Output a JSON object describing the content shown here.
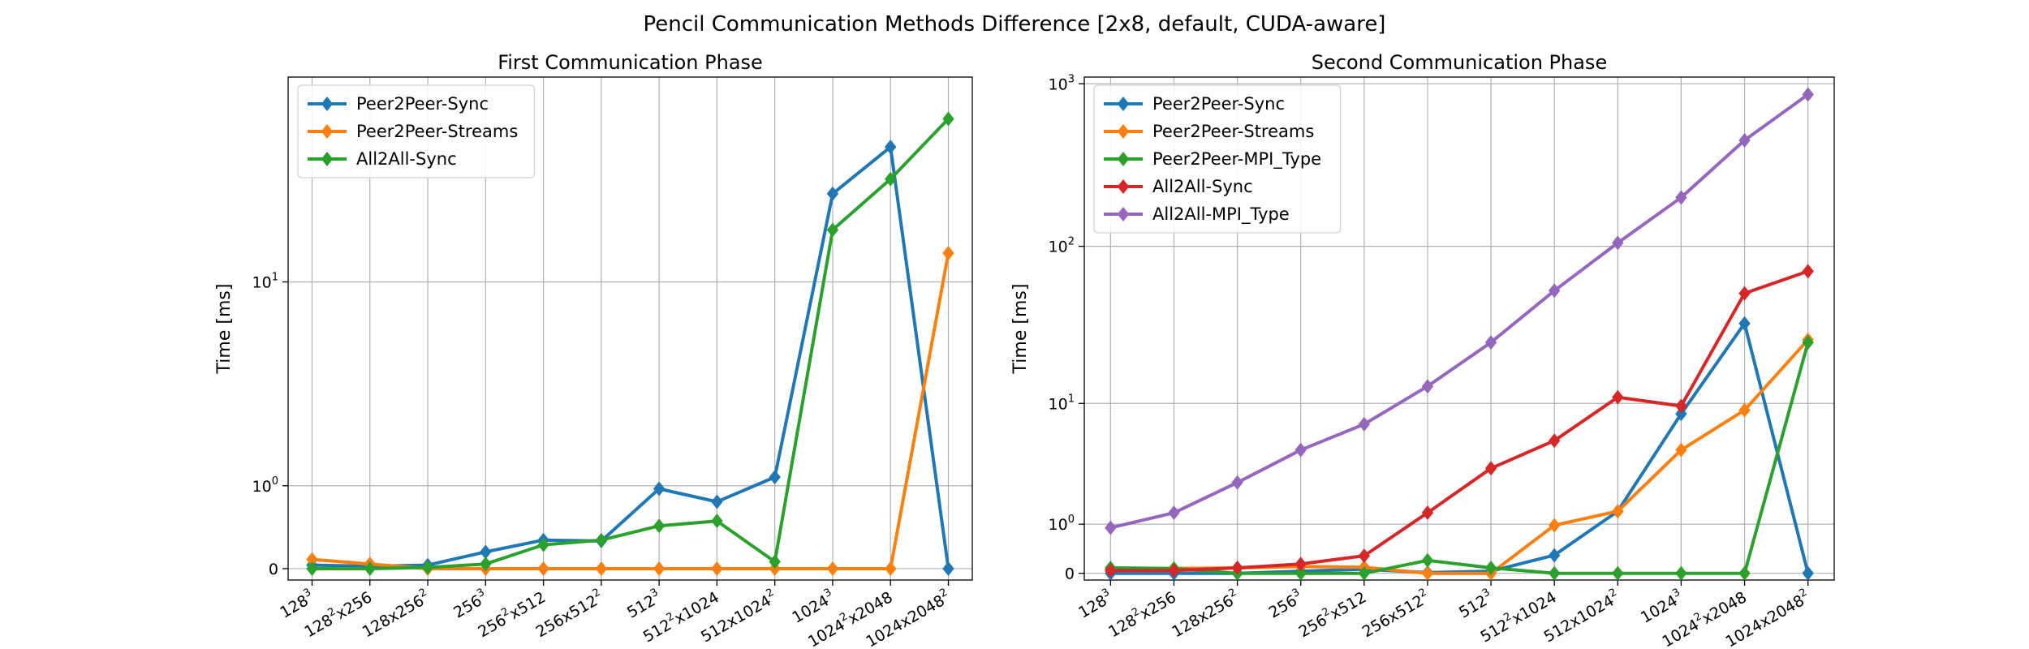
{
  "figure_title": "Pencil Communication Methods Difference [2x8, default, CUDA-aware]",
  "chart_data": [
    {
      "type": "line",
      "title": "First Communication Phase",
      "xlabel": "",
      "ylabel": "Time [ms]",
      "yscale": "symlog",
      "linthresh": 1,
      "ylim": [
        -0.1,
        60
      ],
      "yticks": [
        0,
        1,
        10
      ],
      "ytick_labels": [
        {
          "base": "0",
          "exp": ""
        },
        {
          "base": "10",
          "exp": "0"
        },
        {
          "base": "10",
          "exp": "1"
        }
      ],
      "grid": true,
      "legend_position": "upper-left",
      "categories": [
        {
          "b": "128",
          "s": "3",
          "t": ""
        },
        {
          "b": "128",
          "s": "2",
          "t": "x256"
        },
        {
          "b": "128x256",
          "s": "2",
          "t": ""
        },
        {
          "b": "256",
          "s": "3",
          "t": ""
        },
        {
          "b": "256",
          "s": "2",
          "t": "x512"
        },
        {
          "b": "256x512",
          "s": "2",
          "t": ""
        },
        {
          "b": "512",
          "s": "3",
          "t": ""
        },
        {
          "b": "512",
          "s": "2",
          "t": "x1024"
        },
        {
          "b": "512x1024",
          "s": "2",
          "t": ""
        },
        {
          "b": "1024",
          "s": "3",
          "t": ""
        },
        {
          "b": "1024",
          "s": "2",
          "t": "x2048"
        },
        {
          "b": "1024x2048",
          "s": "2",
          "t": ""
        }
      ],
      "series": [
        {
          "name": "Peer2Peer-Sync",
          "color": "#1f77b4",
          "values": [
            0.03,
            0.02,
            0.03,
            0.15,
            0.27,
            0.26,
            0.95,
            0.75,
            1.15,
            22,
            33,
            0
          ]
        },
        {
          "name": "Peer2Peer-Streams",
          "color": "#ff7f0e",
          "values": [
            0.08,
            0.04,
            0,
            0,
            0,
            0,
            0,
            0,
            0,
            0,
            0,
            13
          ]
        },
        {
          "name": "All2All-Sync",
          "color": "#2ca02c",
          "values": [
            0,
            0,
            0.01,
            0.04,
            0.22,
            0.27,
            0.43,
            0.49,
            0.06,
            16,
            25,
            42
          ]
        }
      ]
    },
    {
      "type": "line",
      "title": "Second Communication Phase",
      "xlabel": "",
      "ylabel": "Time [ms]",
      "yscale": "symlog",
      "linthresh": 1,
      "ylim": [
        -0.1,
        1100
      ],
      "yticks": [
        0,
        1,
        10,
        100,
        1000
      ],
      "ytick_labels": [
        {
          "base": "0",
          "exp": ""
        },
        {
          "base": "10",
          "exp": "0"
        },
        {
          "base": "10",
          "exp": "1"
        },
        {
          "base": "10",
          "exp": "2"
        },
        {
          "base": "10",
          "exp": "3"
        }
      ],
      "grid": true,
      "legend_position": "upper-left",
      "categories": [
        {
          "b": "128",
          "s": "3",
          "t": ""
        },
        {
          "b": "128",
          "s": "2",
          "t": "x256"
        },
        {
          "b": "128x256",
          "s": "2",
          "t": ""
        },
        {
          "b": "256",
          "s": "3",
          "t": ""
        },
        {
          "b": "256",
          "s": "2",
          "t": "x512"
        },
        {
          "b": "256x512",
          "s": "2",
          "t": ""
        },
        {
          "b": "512",
          "s": "3",
          "t": ""
        },
        {
          "b": "512",
          "s": "2",
          "t": "x1024"
        },
        {
          "b": "512x1024",
          "s": "2",
          "t": ""
        },
        {
          "b": "1024",
          "s": "3",
          "t": ""
        },
        {
          "b": "1024",
          "s": "2",
          "t": "x2048"
        },
        {
          "b": "1024x2048",
          "s": "2",
          "t": ""
        }
      ],
      "series": [
        {
          "name": "Peer2Peer-Sync",
          "color": "#1f77b4",
          "values": [
            0,
            0,
            0,
            0.03,
            0.06,
            0.01,
            0.03,
            0.29,
            1.4,
            8.5,
            33,
            0
          ]
        },
        {
          "name": "Peer2Peer-Streams",
          "color": "#ff7f0e",
          "values": [
            0.06,
            0.07,
            0.08,
            0.1,
            0.09,
            0,
            0,
            0.97,
            1.4,
            4.7,
            9,
            26
          ]
        },
        {
          "name": "Peer2Peer-MPI_Type",
          "color": "#2ca02c",
          "values": [
            0.08,
            0.07,
            0,
            0,
            0,
            0.2,
            0.08,
            0,
            0,
            0,
            0,
            25
          ]
        },
        {
          "name": "All2All-Sync",
          "color": "#d62728",
          "values": [
            0.04,
            0.04,
            0.08,
            0.14,
            0.28,
            1.35,
            3.4,
            5.5,
            11,
            9.6,
            51,
            70
          ]
        },
        {
          "name": "All2All-MPI_Type",
          "color": "#9467bd",
          "values": [
            0.9,
            1.35,
            2.6,
            4.7,
            7.2,
            13,
            25,
            53,
            105,
            200,
            450,
            860
          ]
        }
      ]
    }
  ]
}
